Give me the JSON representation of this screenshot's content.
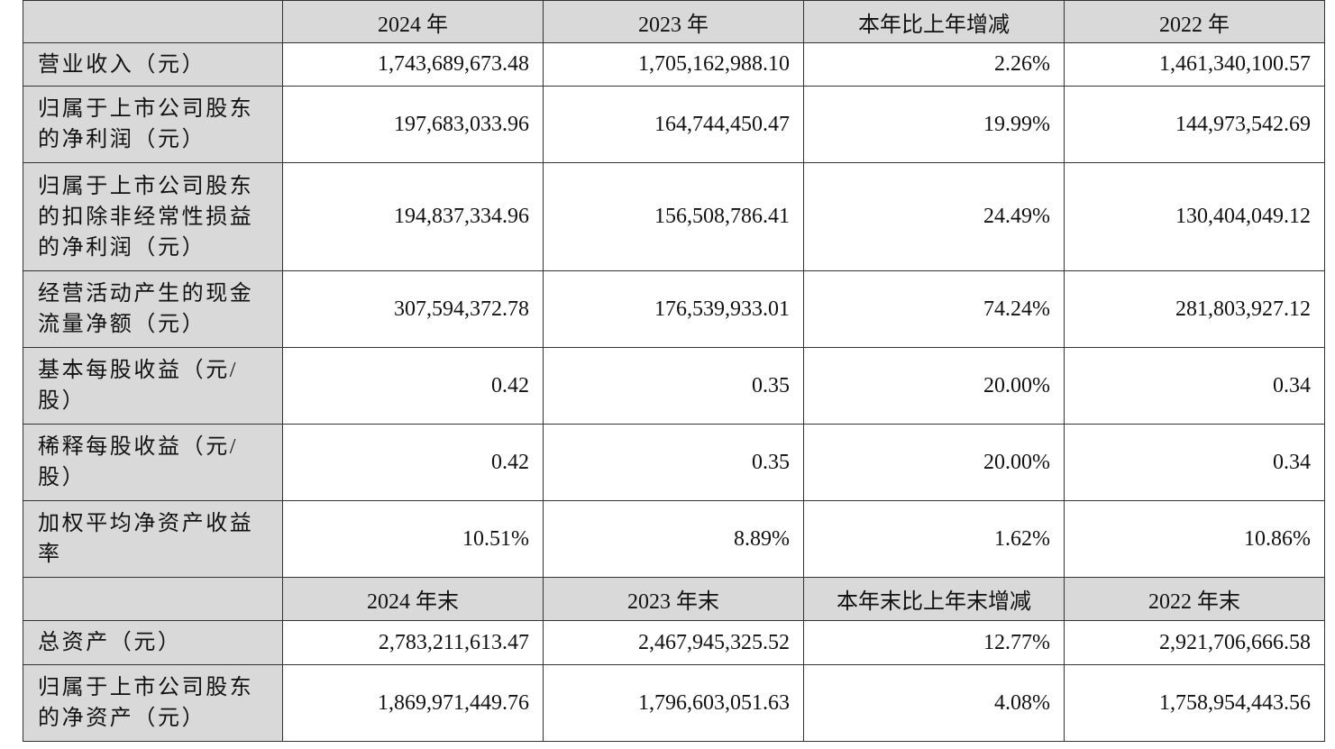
{
  "table": {
    "header": [
      "2024 年",
      "2023 年",
      "本年比上年增减",
      "2022 年"
    ],
    "rows": [
      {
        "label": "营业收入（元）",
        "values": [
          "1,743,689,673.48",
          "1,705,162,988.10",
          "2.26%",
          "1,461,340,100.57"
        ]
      },
      {
        "label": "归属于上市公司股东的净利润（元）",
        "values": [
          "197,683,033.96",
          "164,744,450.47",
          "19.99%",
          "144,973,542.69"
        ]
      },
      {
        "label": "归属于上市公司股东的扣除非经常性损益的净利润（元）",
        "values": [
          "194,837,334.96",
          "156,508,786.41",
          "24.49%",
          "130,404,049.12"
        ]
      },
      {
        "label": "经营活动产生的现金流量净额（元）",
        "values": [
          "307,594,372.78",
          "176,539,933.01",
          "74.24%",
          "281,803,927.12"
        ]
      },
      {
        "label": "基本每股收益（元/股）",
        "values": [
          "0.42",
          "0.35",
          "20.00%",
          "0.34"
        ]
      },
      {
        "label": "稀释每股收益（元/股）",
        "values": [
          "0.42",
          "0.35",
          "20.00%",
          "0.34"
        ]
      },
      {
        "label": "加权平均净资产收益率",
        "values": [
          "10.51%",
          "8.89%",
          "1.62%",
          "10.86%"
        ]
      }
    ],
    "header2": [
      "2024 年末",
      "2023 年末",
      "本年末比上年末增减",
      "2022 年末"
    ],
    "rows2": [
      {
        "label": "总资产（元）",
        "values": [
          "2,783,211,613.47",
          "2,467,945,325.52",
          "12.77%",
          "2,921,706,666.58"
        ]
      },
      {
        "label": "归属于上市公司股东的净资产（元）",
        "values": [
          "1,869,971,449.76",
          "1,796,603,051.63",
          "4.08%",
          "1,758,954,443.56"
        ]
      }
    ]
  }
}
